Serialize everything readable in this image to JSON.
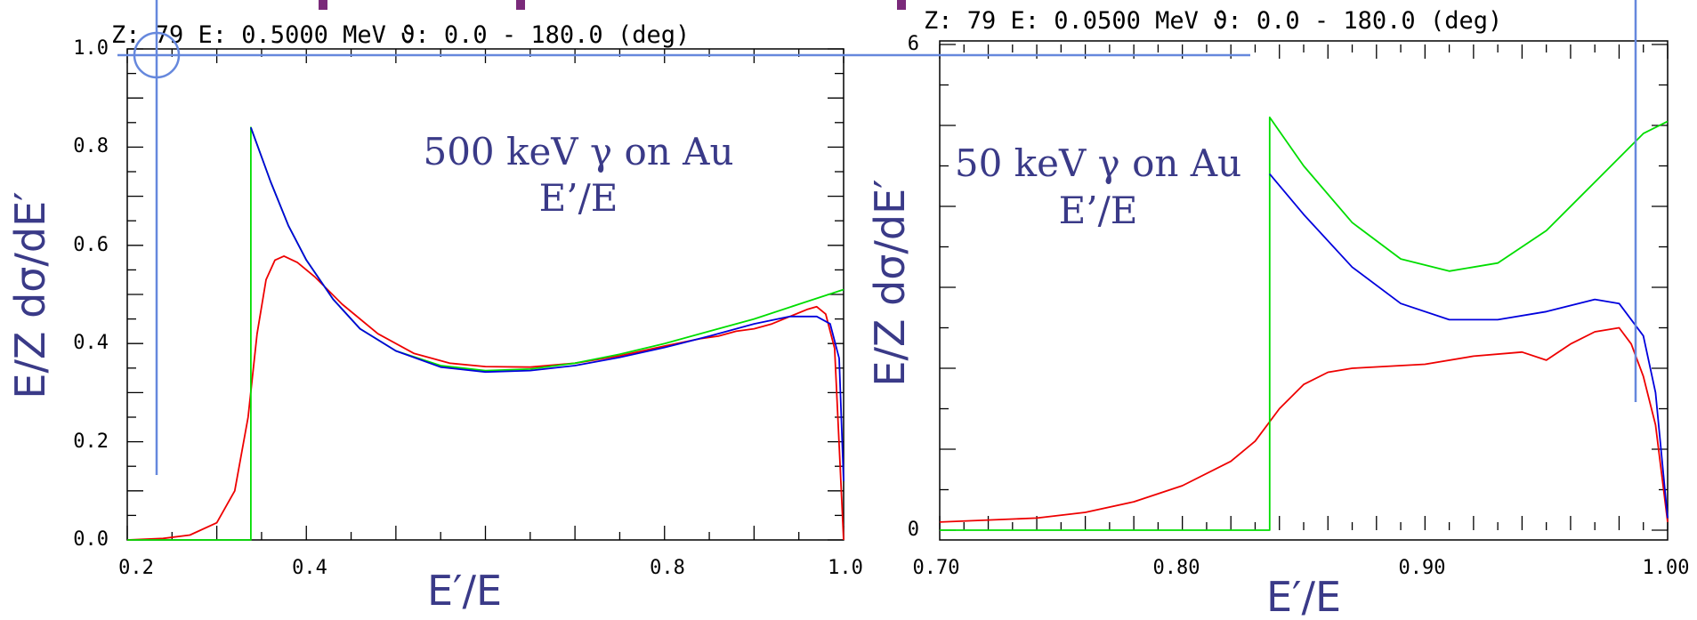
{
  "colors": {
    "red": "#ee0000",
    "green": "#00dd00",
    "blue": "#0000dd",
    "overlay": "#6688dd",
    "headline": "#7a2a7a",
    "label": "#3a3a88"
  },
  "chart_data": [
    {
      "type": "line",
      "header": "Z:  79 E:    0.5000 MeV ϑ:   0.0 - 180.0 (deg)",
      "annotation_line1": "500 keV γ on Au",
      "annotation_line2": "E’/E",
      "xlabel": "E′/E",
      "ylabel": "E/Z dσ/dE′",
      "xlim": [
        0.2,
        1.0
      ],
      "ylim": [
        0.0,
        1.0
      ],
      "x_tick_labels": [
        "0.2",
        "0.4",
        "0.8",
        "1.0"
      ],
      "y_tick_labels": [
        "0.0",
        "0.2",
        "0.4",
        "0.6",
        "0.8",
        "1.0"
      ],
      "series": [
        {
          "color": "red",
          "points": [
            [
              0.2,
              0.0
            ],
            [
              0.24,
              0.003
            ],
            [
              0.27,
              0.01
            ],
            [
              0.3,
              0.035
            ],
            [
              0.32,
              0.1
            ],
            [
              0.335,
              0.25
            ],
            [
              0.345,
              0.42
            ],
            [
              0.355,
              0.53
            ],
            [
              0.365,
              0.57
            ],
            [
              0.375,
              0.578
            ],
            [
              0.39,
              0.565
            ],
            [
              0.41,
              0.535
            ],
            [
              0.44,
              0.48
            ],
            [
              0.48,
              0.42
            ],
            [
              0.52,
              0.38
            ],
            [
              0.56,
              0.36
            ],
            [
              0.6,
              0.353
            ],
            [
              0.65,
              0.352
            ],
            [
              0.7,
              0.36
            ],
            [
              0.75,
              0.375
            ],
            [
              0.8,
              0.395
            ],
            [
              0.84,
              0.41
            ],
            [
              0.86,
              0.415
            ],
            [
              0.88,
              0.425
            ],
            [
              0.9,
              0.43
            ],
            [
              0.92,
              0.44
            ],
            [
              0.94,
              0.455
            ],
            [
              0.96,
              0.47
            ],
            [
              0.97,
              0.475
            ],
            [
              0.98,
              0.46
            ],
            [
              0.99,
              0.39
            ],
            [
              1.0,
              0.0
            ]
          ]
        },
        {
          "color": "green",
          "points": [
            [
              0.2,
              0.0
            ],
            [
              0.338,
              0.0
            ],
            [
              0.338,
              0.84
            ],
            [
              0.36,
              0.73
            ],
            [
              0.38,
              0.64
            ],
            [
              0.4,
              0.57
            ],
            [
              0.43,
              0.49
            ],
            [
              0.46,
              0.43
            ],
            [
              0.5,
              0.385
            ],
            [
              0.55,
              0.355
            ],
            [
              0.6,
              0.345
            ],
            [
              0.65,
              0.348
            ],
            [
              0.7,
              0.36
            ],
            [
              0.75,
              0.378
            ],
            [
              0.8,
              0.4
            ],
            [
              0.85,
              0.425
            ],
            [
              0.9,
              0.45
            ],
            [
              0.95,
              0.48
            ],
            [
              1.0,
              0.51
            ]
          ]
        },
        {
          "color": "blue",
          "points": [
            [
              0.338,
              0.84
            ],
            [
              0.36,
              0.73
            ],
            [
              0.38,
              0.64
            ],
            [
              0.4,
              0.57
            ],
            [
              0.43,
              0.49
            ],
            [
              0.46,
              0.43
            ],
            [
              0.5,
              0.385
            ],
            [
              0.55,
              0.352
            ],
            [
              0.6,
              0.342
            ],
            [
              0.65,
              0.345
            ],
            [
              0.7,
              0.355
            ],
            [
              0.75,
              0.372
            ],
            [
              0.8,
              0.392
            ],
            [
              0.85,
              0.415
            ],
            [
              0.9,
              0.44
            ],
            [
              0.94,
              0.455
            ],
            [
              0.97,
              0.455
            ],
            [
              0.985,
              0.44
            ],
            [
              0.995,
              0.37
            ],
            [
              1.0,
              0.12
            ]
          ]
        }
      ]
    },
    {
      "type": "line",
      "header": "Z:  79 E:    0.0500 MeV ϑ:   0.0 - 180.0 (deg)",
      "annotation_line1": "50 keV γ on Au",
      "annotation_line2": "E’/E",
      "xlabel": "E′/E",
      "ylabel": "E/Z dσ/dE′",
      "xlim": [
        0.7,
        1.0
      ],
      "ylim": [
        0.0,
        6.0
      ],
      "x_tick_labels": [
        "0.70",
        "0.80",
        "0.90",
        "1.00"
      ],
      "y_tick_labels": [
        "0",
        "6"
      ],
      "series": [
        {
          "color": "red",
          "points": [
            [
              0.7,
              0.1
            ],
            [
              0.74,
              0.15
            ],
            [
              0.76,
              0.22
            ],
            [
              0.78,
              0.35
            ],
            [
              0.8,
              0.55
            ],
            [
              0.82,
              0.85
            ],
            [
              0.83,
              1.1
            ],
            [
              0.84,
              1.5
            ],
            [
              0.85,
              1.8
            ],
            [
              0.86,
              1.95
            ],
            [
              0.87,
              2.0
            ],
            [
              0.9,
              2.05
            ],
            [
              0.92,
              2.15
            ],
            [
              0.94,
              2.2
            ],
            [
              0.95,
              2.1
            ],
            [
              0.96,
              2.3
            ],
            [
              0.97,
              2.45
            ],
            [
              0.98,
              2.5
            ],
            [
              0.985,
              2.3
            ],
            [
              0.99,
              1.9
            ],
            [
              0.995,
              1.3
            ],
            [
              1.0,
              0.1
            ]
          ]
        },
        {
          "color": "green",
          "points": [
            [
              0.7,
              0.0
            ],
            [
              0.836,
              0.0
            ],
            [
              0.836,
              5.1
            ],
            [
              0.85,
              4.5
            ],
            [
              0.87,
              3.8
            ],
            [
              0.89,
              3.35
            ],
            [
              0.91,
              3.2
            ],
            [
              0.93,
              3.3
            ],
            [
              0.95,
              3.7
            ],
            [
              0.97,
              4.3
            ],
            [
              0.99,
              4.9
            ],
            [
              1.0,
              5.05
            ]
          ]
        },
        {
          "color": "blue",
          "points": [
            [
              0.836,
              4.4
            ],
            [
              0.85,
              3.9
            ],
            [
              0.87,
              3.25
            ],
            [
              0.89,
              2.8
            ],
            [
              0.91,
              2.6
            ],
            [
              0.93,
              2.6
            ],
            [
              0.95,
              2.7
            ],
            [
              0.97,
              2.85
            ],
            [
              0.98,
              2.8
            ],
            [
              0.99,
              2.4
            ],
            [
              0.995,
              1.7
            ],
            [
              1.0,
              0.15
            ]
          ]
        }
      ]
    }
  ]
}
